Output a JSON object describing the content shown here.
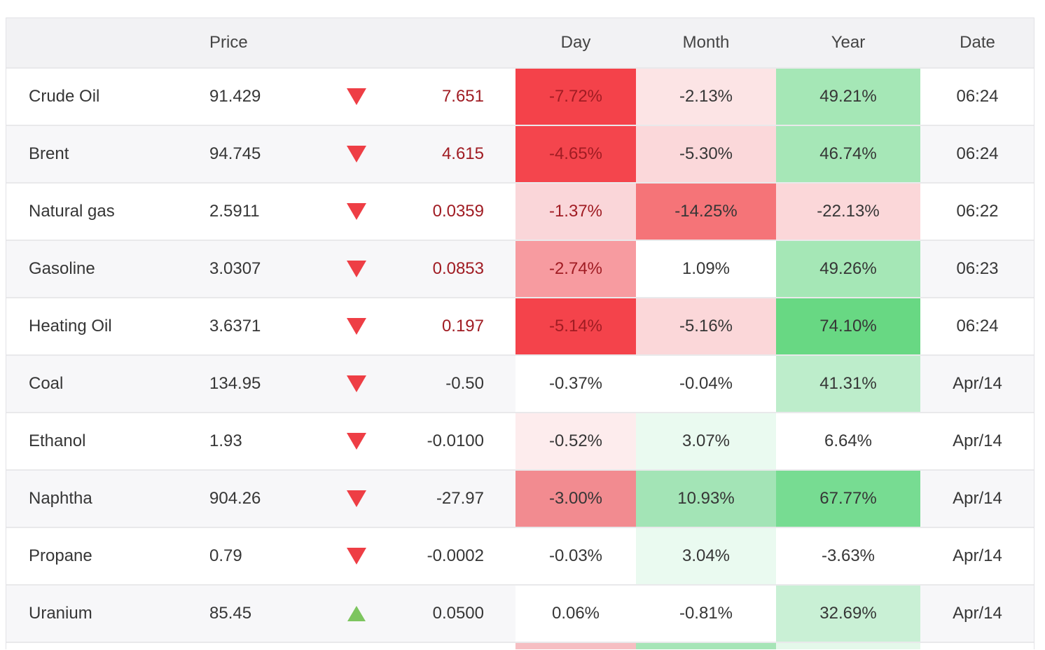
{
  "colors": {
    "divider": "#e9e9eb",
    "header-bg": "#f2f2f4",
    "stripe": "#f7f7f9",
    "outer-border": "#e2e2e6",
    "text": "#363636",
    "header-text": "#444444",
    "red-text": "#a01c23",
    "tri-red": "#ee3e45",
    "tri-green": "#7dc55f"
  },
  "table": {
    "columns": {
      "price": "Price",
      "day": "Day",
      "month": "Month",
      "year": "Year",
      "date": "Date"
    },
    "rows": [
      {
        "name": "Crude Oil",
        "price": "91.429",
        "direction": "down",
        "change": "7.651",
        "highlight_red": true,
        "day": "-7.72%",
        "month": "-2.13%",
        "year": "49.21%",
        "date": "06:24",
        "day_bg": "#f4424a",
        "month_bg": "#fce4e5",
        "year_bg": "#a5e7b6"
      },
      {
        "name": "Brent",
        "price": "94.745",
        "direction": "down",
        "change": "4.615",
        "highlight_red": true,
        "day": "-4.65%",
        "month": "-5.30%",
        "year": "46.74%",
        "date": "06:24",
        "day_bg": "#f4454d",
        "month_bg": "#fbd8da",
        "year_bg": "#a6e7b7"
      },
      {
        "name": "Natural gas",
        "price": "2.5911",
        "direction": "down",
        "change": "0.0359",
        "highlight_red": true,
        "day": "-1.37%",
        "month": "-14.25%",
        "year": "-22.13%",
        "date": "06:22",
        "day_bg": "#fad6d9",
        "month_bg": "#f57478",
        "year_bg": "#fbd7d9"
      },
      {
        "name": "Gasoline",
        "price": "3.0307",
        "direction": "down",
        "change": "0.0853",
        "highlight_red": true,
        "day": "-2.74%",
        "month": "1.09%",
        "year": "49.26%",
        "date": "06:23",
        "day_bg": "#f79ba0",
        "month_bg": "#ffffff",
        "year_bg": "#a5e7b6"
      },
      {
        "name": "Heating Oil",
        "price": "3.6371",
        "direction": "down",
        "change": "0.197",
        "highlight_red": true,
        "day": "-5.14%",
        "month": "-5.16%",
        "year": "74.10%",
        "date": "06:24",
        "day_bg": "#f4434b",
        "month_bg": "#fbd7d9",
        "year_bg": "#68d883"
      },
      {
        "name": "Coal",
        "price": "134.95",
        "direction": "down",
        "change": "-0.50",
        "highlight_red": false,
        "day": "-0.37%",
        "month": "-0.04%",
        "year": "41.31%",
        "date": "Apr/14",
        "day_bg": "#ffffff",
        "month_bg": "#ffffff",
        "year_bg": "#bdedcb"
      },
      {
        "name": "Ethanol",
        "price": "1.93",
        "direction": "down",
        "change": "-0.0100",
        "highlight_red": false,
        "day": "-0.52%",
        "month": "3.07%",
        "year": "6.64%",
        "date": "Apr/14",
        "day_bg": "#fdeced",
        "month_bg": "#eafaf0",
        "year_bg": "#ffffff"
      },
      {
        "name": "Naphtha",
        "price": "904.26",
        "direction": "down",
        "change": "-27.97",
        "highlight_red": false,
        "day": "-3.00%",
        "month": "10.93%",
        "year": "67.77%",
        "date": "Apr/14",
        "day_bg": "#f28b90",
        "month_bg": "#a3e4b6",
        "year_bg": "#77dc92"
      },
      {
        "name": "Propane",
        "price": "0.79",
        "direction": "down",
        "change": "-0.0002",
        "highlight_red": false,
        "day": "-0.03%",
        "month": "3.04%",
        "year": "-3.63%",
        "date": "Apr/14",
        "day_bg": "#ffffff",
        "month_bg": "#eafaf0",
        "year_bg": "#ffffff"
      },
      {
        "name": "Uranium",
        "price": "85.45",
        "direction": "up",
        "change": "0.0500",
        "highlight_red": false,
        "day": "0.06%",
        "month": "-0.81%",
        "year": "32.69%",
        "date": "Apr/14",
        "day_bg": "#ffffff",
        "month_bg": "#ffffff",
        "year_bg": "#c9f0d5"
      }
    ],
    "partial_row": {
      "day_bg": "#f6bec2",
      "month_bg": "#a6e5b7",
      "year_bg": "#e4f8ea"
    }
  }
}
